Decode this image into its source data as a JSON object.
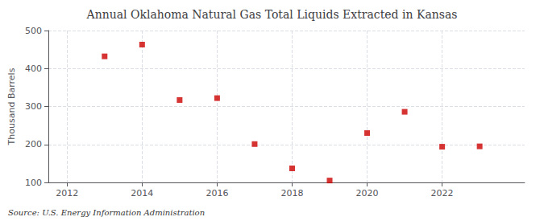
{
  "chart_data": {
    "type": "scatter",
    "title": "Annual Oklahoma Natural Gas Total Liquids Extracted in Kansas",
    "ylabel": "Thousand Barrels",
    "source": "Source: U.S. Energy Information Administration",
    "x": [
      2013,
      2014,
      2015,
      2016,
      2017,
      2018,
      2019,
      2020,
      2021,
      2022,
      2023
    ],
    "values": [
      432,
      463,
      317,
      322,
      201,
      137,
      105,
      230,
      286,
      194,
      195
    ],
    "color": "#cc0000",
    "marker": "square",
    "xlim": [
      2011.5,
      2024.2
    ],
    "xticks": [
      2012,
      2014,
      2016,
      2018,
      2020,
      2022
    ],
    "ylim": [
      100,
      500
    ],
    "yticks": [
      100,
      200,
      300,
      400,
      500
    ],
    "grid": true
  }
}
